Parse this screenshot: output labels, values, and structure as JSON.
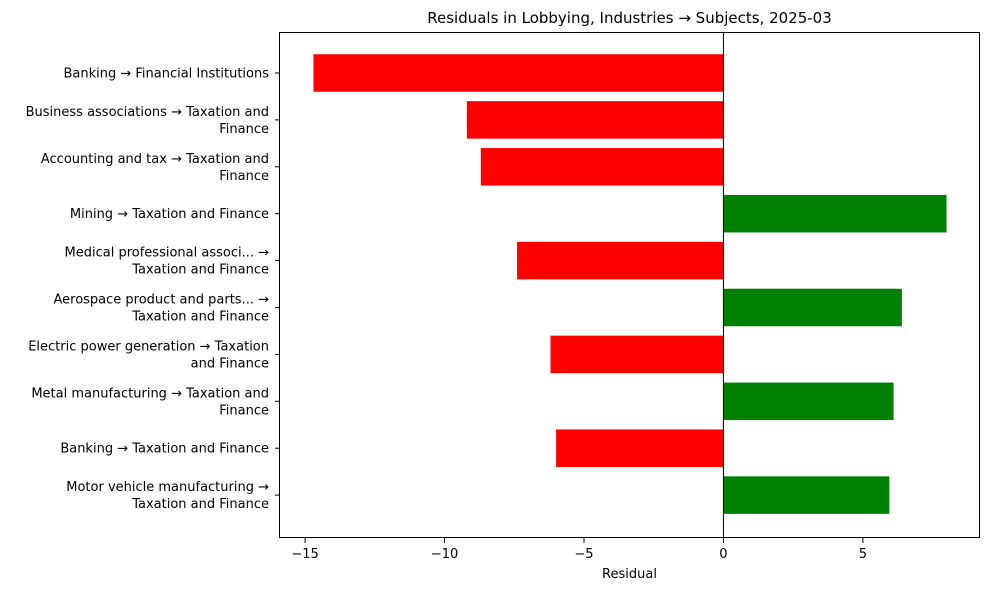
{
  "chart_data": {
    "type": "bar",
    "orientation": "horizontal",
    "title": "Residuals in Lobbying, Industries → Subjects, 2025-03",
    "xlabel": "Residual",
    "ylabel": "",
    "xlim": [
      -15.9,
      9.2
    ],
    "xticks": [
      -15,
      -10,
      -5,
      0,
      5
    ],
    "xtick_labels": [
      "−15",
      "−10",
      "−5",
      "0",
      "5"
    ],
    "grid": false,
    "positive_color": "#008000",
    "negative_color": "#ff0000",
    "categories": [
      [
        "Banking → Financial Institutions"
      ],
      [
        "Business associations → Taxation and",
        "Finance"
      ],
      [
        "Accounting and tax → Taxation and",
        "Finance"
      ],
      [
        "Mining → Taxation and Finance"
      ],
      [
        "Medical professional associ... →",
        "Taxation and Finance"
      ],
      [
        "Aerospace product and parts... →",
        "Taxation and Finance"
      ],
      [
        "Electric power generation → Taxation",
        "and Finance"
      ],
      [
        "Metal manufacturing → Taxation and",
        "Finance"
      ],
      [
        "Banking → Taxation and Finance"
      ],
      [
        "Motor vehicle manufacturing →",
        "Taxation and Finance"
      ]
    ],
    "values": [
      -14.7,
      -9.2,
      -8.7,
      8.0,
      -7.4,
      6.4,
      -6.2,
      6.1,
      -6.0,
      5.95
    ]
  }
}
